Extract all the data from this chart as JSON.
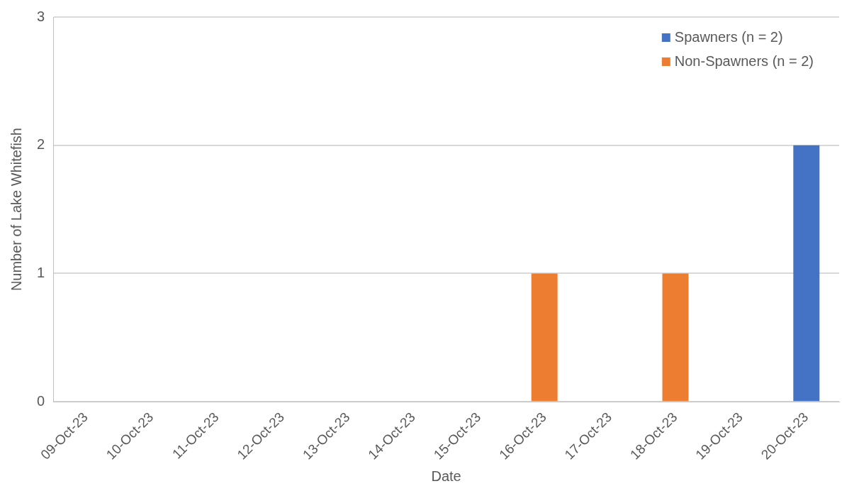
{
  "chart_data": {
    "type": "bar",
    "xlabel": "Date",
    "ylabel": "Number of Lake Whitefish",
    "categories": [
      "09-Oct-23",
      "10-Oct-23",
      "11-Oct-23",
      "12-Oct-23",
      "13-Oct-23",
      "14-Oct-23",
      "15-Oct-23",
      "16-Oct-23",
      "17-Oct-23",
      "18-Oct-23",
      "19-Oct-23",
      "20-Oct-23"
    ],
    "series": [
      {
        "name": "Spawners (n = 2)",
        "color": "#4472c4",
        "values": [
          0,
          0,
          0,
          0,
          0,
          0,
          0,
          0,
          0,
          0,
          0,
          2
        ]
      },
      {
        "name": "Non-Spawners (n = 2)",
        "color": "#ed7d31",
        "values": [
          0,
          0,
          0,
          0,
          0,
          0,
          0,
          1,
          0,
          1,
          0,
          0
        ]
      }
    ],
    "stacked": true,
    "ylim": [
      0,
      3
    ],
    "yticks": [
      0,
      1,
      2,
      3
    ],
    "grid": "y",
    "legend": "top right"
  }
}
